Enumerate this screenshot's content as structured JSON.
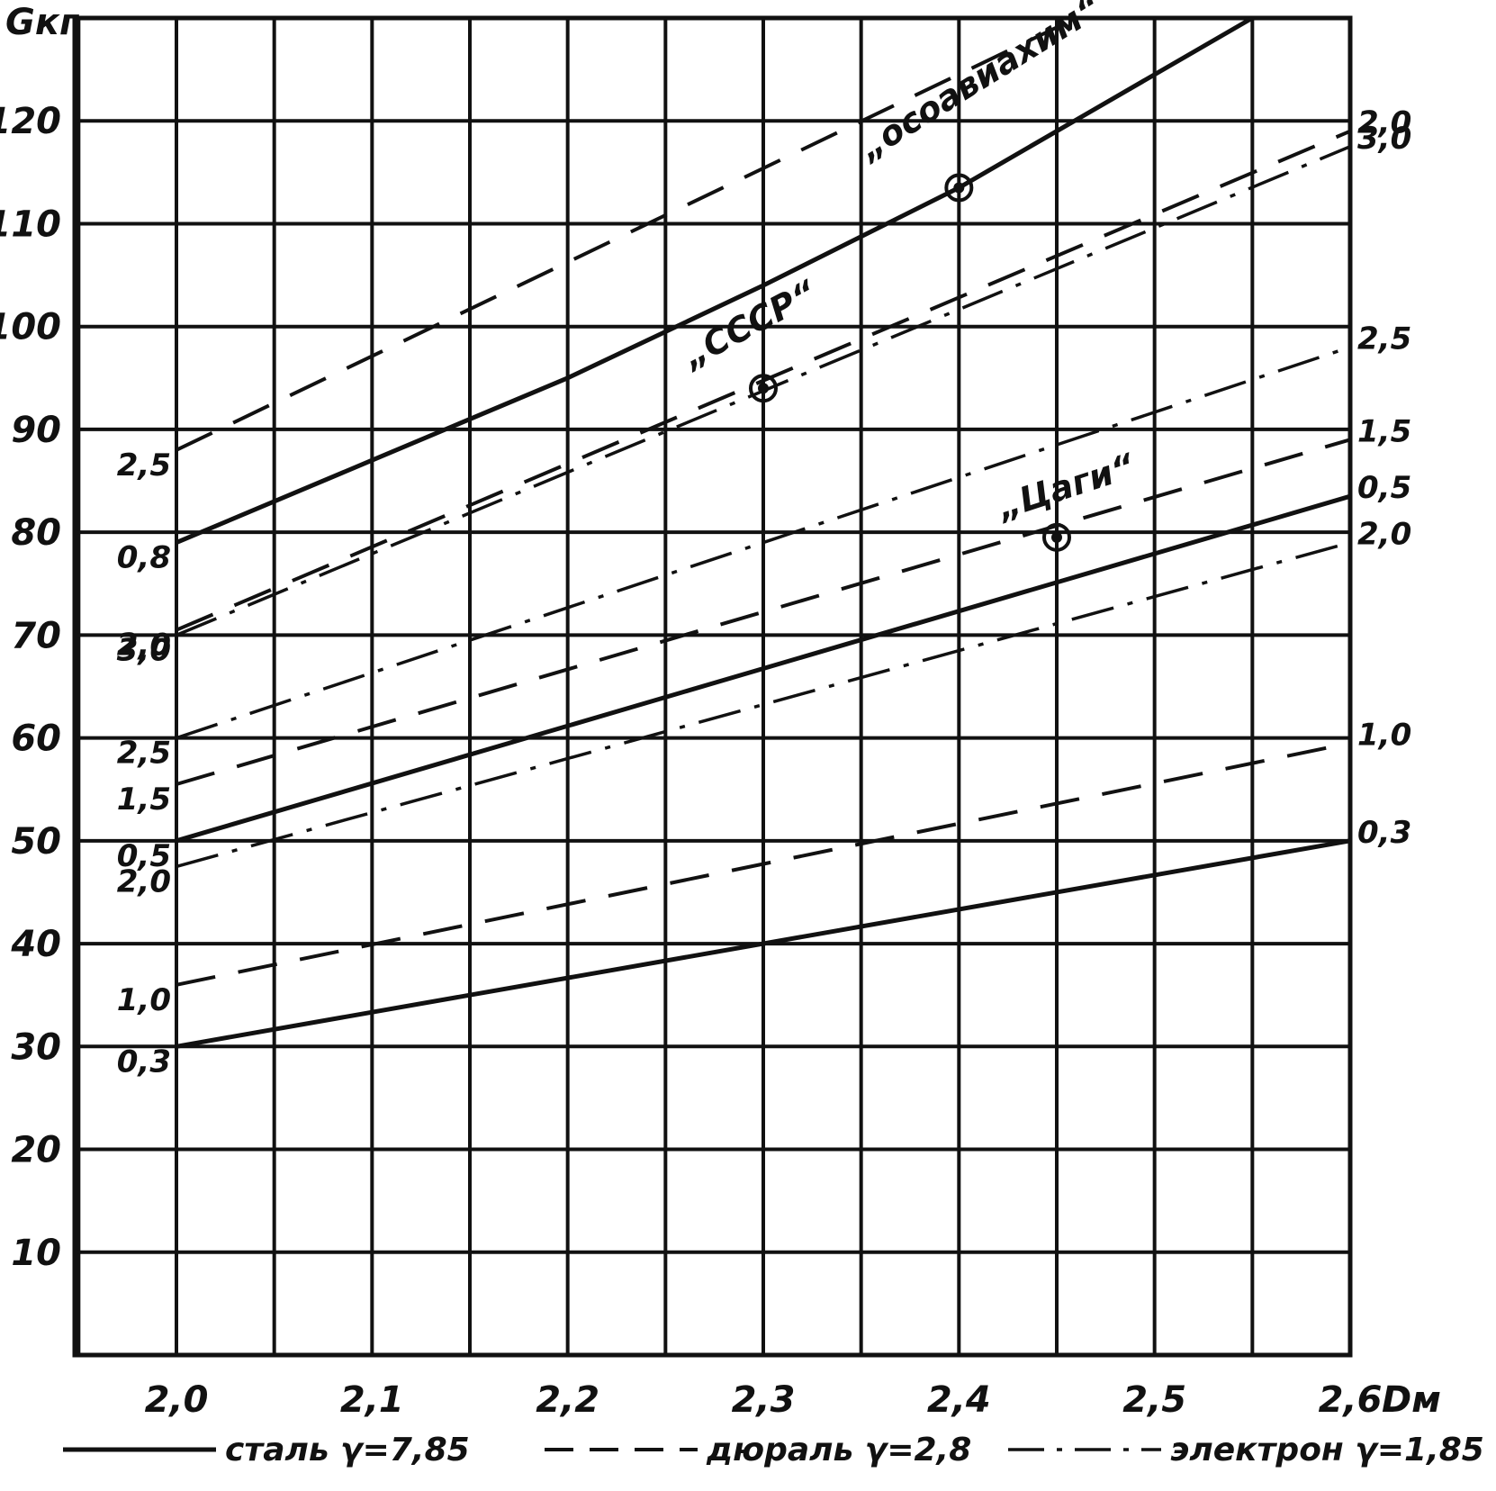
{
  "chart_data": {
    "type": "line",
    "title": "",
    "xlabel": "Dм",
    "ylabel": "Gкг",
    "xlim": [
      1.95,
      2.6
    ],
    "ylim": [
      0,
      130
    ],
    "x_ticks": [
      2.0,
      2.1,
      2.2,
      2.3,
      2.4,
      2.5,
      2.6
    ],
    "x_tick_labels": [
      "2,0",
      "2,1",
      "2,2",
      "2,3",
      "2,4",
      "2,5",
      "2,6"
    ],
    "y_ticks": [
      10,
      20,
      30,
      40,
      50,
      60,
      70,
      80,
      90,
      100,
      110,
      120
    ],
    "y_tick_labels": [
      "10",
      "20",
      "30",
      "40",
      "50",
      "60",
      "70",
      "80",
      "90",
      "100",
      "110",
      "120"
    ],
    "grid": true,
    "materials": [
      {
        "key": "steel",
        "label": "сталь γ=7,85",
        "dash": "solid"
      },
      {
        "key": "dural",
        "label": "дюраль γ=2,8",
        "dash": "dashed"
      },
      {
        "key": "electron",
        "label": "электрон γ=1,85",
        "dash": "dashdot"
      }
    ],
    "series": [
      {
        "material": "dural",
        "left_label": "2,5",
        "right_label": "",
        "points": [
          [
            2.0,
            88
          ],
          [
            2.46,
            130
          ]
        ]
      },
      {
        "material": "steel",
        "left_label": "0,8",
        "right_label": "",
        "points": [
          [
            2.0,
            79
          ],
          [
            2.1,
            87
          ],
          [
            2.2,
            95
          ],
          [
            2.3,
            104
          ],
          [
            2.4,
            113.5
          ],
          [
            2.55,
            130
          ]
        ]
      },
      {
        "material": "dural",
        "left_label": "2,0",
        "right_label": "2,0",
        "points": [
          [
            2.0,
            70.5
          ],
          [
            2.6,
            119
          ]
        ]
      },
      {
        "material": "electron",
        "left_label": "3,0",
        "right_label": "3,0",
        "points": [
          [
            2.0,
            70
          ],
          [
            2.6,
            117.5
          ]
        ]
      },
      {
        "material": "electron",
        "left_label": "2,5",
        "right_label": "2,5",
        "points": [
          [
            2.0,
            60
          ],
          [
            2.6,
            98
          ]
        ]
      },
      {
        "material": "dural",
        "left_label": "1,5",
        "right_label": "1,5",
        "points": [
          [
            2.0,
            55.5
          ],
          [
            2.6,
            89
          ]
        ]
      },
      {
        "material": "steel",
        "left_label": "0,5",
        "right_label": "0,5",
        "points": [
          [
            2.0,
            50
          ],
          [
            2.6,
            83.5
          ]
        ]
      },
      {
        "material": "electron",
        "left_label": "2,0",
        "right_label": "2,0",
        "points": [
          [
            2.0,
            47.5
          ],
          [
            2.6,
            79
          ]
        ]
      },
      {
        "material": "dural",
        "left_label": "1,0",
        "right_label": "1,0",
        "points": [
          [
            2.0,
            36
          ],
          [
            2.6,
            59.5
          ]
        ]
      },
      {
        "material": "steel",
        "left_label": "0,3",
        "right_label": "0,3",
        "points": [
          [
            2.0,
            30
          ],
          [
            2.6,
            50
          ]
        ]
      }
    ],
    "annotations": [
      {
        "text": "„осоавиахим“",
        "x": 2.4,
        "y": 113.5
      },
      {
        "text": "„СССР“",
        "x": 2.3,
        "y": 94
      },
      {
        "text": "„Цаги“",
        "x": 2.45,
        "y": 79.5
      }
    ]
  }
}
